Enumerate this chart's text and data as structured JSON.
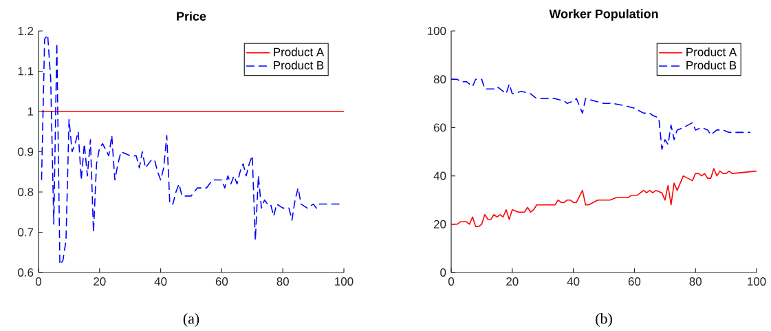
{
  "chart_data": [
    {
      "type": "line",
      "title": "Price",
      "annotations": [
        "(a)"
      ],
      "xlim": [
        0,
        100
      ],
      "ylim": [
        0.6,
        1.2
      ],
      "xticks": [
        0,
        20,
        40,
        60,
        80,
        100
      ],
      "yticks": [
        0.6,
        0.7,
        0.8,
        0.9,
        1,
        1.1,
        1.2
      ],
      "legend": "top right",
      "series": [
        {
          "name": "Product A",
          "color": "#ff0000",
          "line_style": "solid",
          "x": [
            1,
            100
          ],
          "values": [
            1,
            1
          ]
        },
        {
          "name": "Product B",
          "color": "#0000ff",
          "line_style": "dashed",
          "x": [
            1,
            2,
            3,
            4,
            5,
            6,
            7,
            8,
            9,
            10,
            11,
            12,
            13,
            14,
            15,
            16,
            17,
            18,
            19,
            20,
            21,
            23,
            24,
            25,
            26,
            27,
            30,
            32,
            33,
            34,
            35,
            37,
            38,
            39,
            40,
            41,
            42,
            43,
            44,
            45,
            46,
            47,
            50,
            52,
            55,
            57,
            59,
            60,
            61,
            62,
            63,
            64,
            65,
            66,
            67,
            68,
            69,
            70,
            71,
            72,
            73,
            74,
            75,
            76,
            77,
            78,
            80,
            82,
            83,
            84,
            85,
            86,
            88,
            90,
            91,
            92,
            95,
            97,
            99
          ],
          "values": [
            0.83,
            1.18,
            1.19,
            1.08,
            0.72,
            1.17,
            0.62,
            0.63,
            0.68,
            0.98,
            0.9,
            0.92,
            0.95,
            0.83,
            0.92,
            0.84,
            0.93,
            0.7,
            0.87,
            0.91,
            0.92,
            0.89,
            0.94,
            0.83,
            0.87,
            0.9,
            0.89,
            0.89,
            0.86,
            0.9,
            0.86,
            0.88,
            0.88,
            0.85,
            0.83,
            0.86,
            0.94,
            0.77,
            0.77,
            0.8,
            0.82,
            0.79,
            0.79,
            0.81,
            0.81,
            0.83,
            0.83,
            0.83,
            0.81,
            0.84,
            0.82,
            0.84,
            0.82,
            0.85,
            0.87,
            0.84,
            0.87,
            0.89,
            0.68,
            0.84,
            0.76,
            0.78,
            0.77,
            0.77,
            0.74,
            0.77,
            0.76,
            0.76,
            0.73,
            0.78,
            0.81,
            0.77,
            0.76,
            0.77,
            0.76,
            0.77,
            0.77,
            0.77,
            0.77
          ]
        }
      ]
    },
    {
      "type": "line",
      "title": "Worker Population",
      "annotations": [
        "(b)"
      ],
      "xlim": [
        0,
        100
      ],
      "ylim": [
        0,
        100
      ],
      "xticks": [
        0,
        20,
        40,
        60,
        80,
        100
      ],
      "yticks": [
        0,
        20,
        40,
        60,
        80,
        100
      ],
      "legend": "top right",
      "series": [
        {
          "name": "Product A",
          "color": "#ff0000",
          "line_style": "solid",
          "x": [
            0,
            2,
            3,
            5,
            6,
            7,
            8,
            9,
            10,
            11,
            12,
            13,
            14,
            15,
            16,
            17,
            18,
            19,
            20,
            22,
            24,
            25,
            26,
            27,
            28,
            34,
            35,
            36,
            37,
            38,
            39,
            40,
            41,
            43,
            44,
            45,
            48,
            52,
            54,
            58,
            59,
            61,
            62,
            63,
            64,
            65,
            66,
            67,
            69,
            70,
            71,
            72,
            73,
            74,
            75,
            76,
            79,
            80,
            81,
            82,
            83,
            84,
            85,
            86,
            87,
            88,
            89,
            90,
            91,
            92,
            100
          ],
          "values": [
            20,
            20,
            21,
            21,
            20,
            23,
            19,
            19,
            20,
            24,
            22,
            22,
            24,
            23,
            24,
            23,
            26,
            22,
            26,
            25,
            25,
            27,
            25,
            26,
            28,
            28,
            30,
            29,
            29,
            30,
            30,
            29,
            29,
            34,
            28,
            28,
            30,
            30,
            31,
            31,
            32,
            32,
            33,
            34,
            33,
            34,
            33,
            34,
            33,
            30,
            36,
            28,
            37,
            34,
            37,
            40,
            38,
            41,
            41,
            40,
            41,
            39,
            39,
            43,
            40,
            42,
            41,
            41,
            42,
            41,
            42
          ]
        },
        {
          "name": "Product B",
          "color": "#0000ff",
          "line_style": "dashed",
          "x": [
            0,
            2,
            3,
            5,
            7,
            8,
            10,
            11,
            14,
            15,
            16,
            18,
            19,
            20,
            23,
            26,
            28,
            34,
            37,
            38,
            40,
            41,
            43,
            44,
            47,
            50,
            53,
            57,
            60,
            63,
            65,
            66,
            68,
            69,
            70,
            71,
            72,
            73,
            74,
            76,
            79,
            80,
            82,
            84,
            85,
            87,
            89,
            91,
            94,
            98
          ],
          "values": [
            80,
            80,
            79,
            79,
            77,
            80,
            80,
            76,
            76,
            77,
            76,
            74,
            78,
            74,
            75,
            74,
            72,
            72,
            71,
            70,
            71,
            72,
            66,
            72,
            71,
            70,
            70,
            69,
            68,
            66,
            66,
            65,
            64,
            51,
            55,
            53,
            61,
            55,
            59,
            60,
            62,
            59,
            60,
            59,
            57,
            59,
            59,
            58,
            58,
            58
          ]
        }
      ]
    }
  ]
}
